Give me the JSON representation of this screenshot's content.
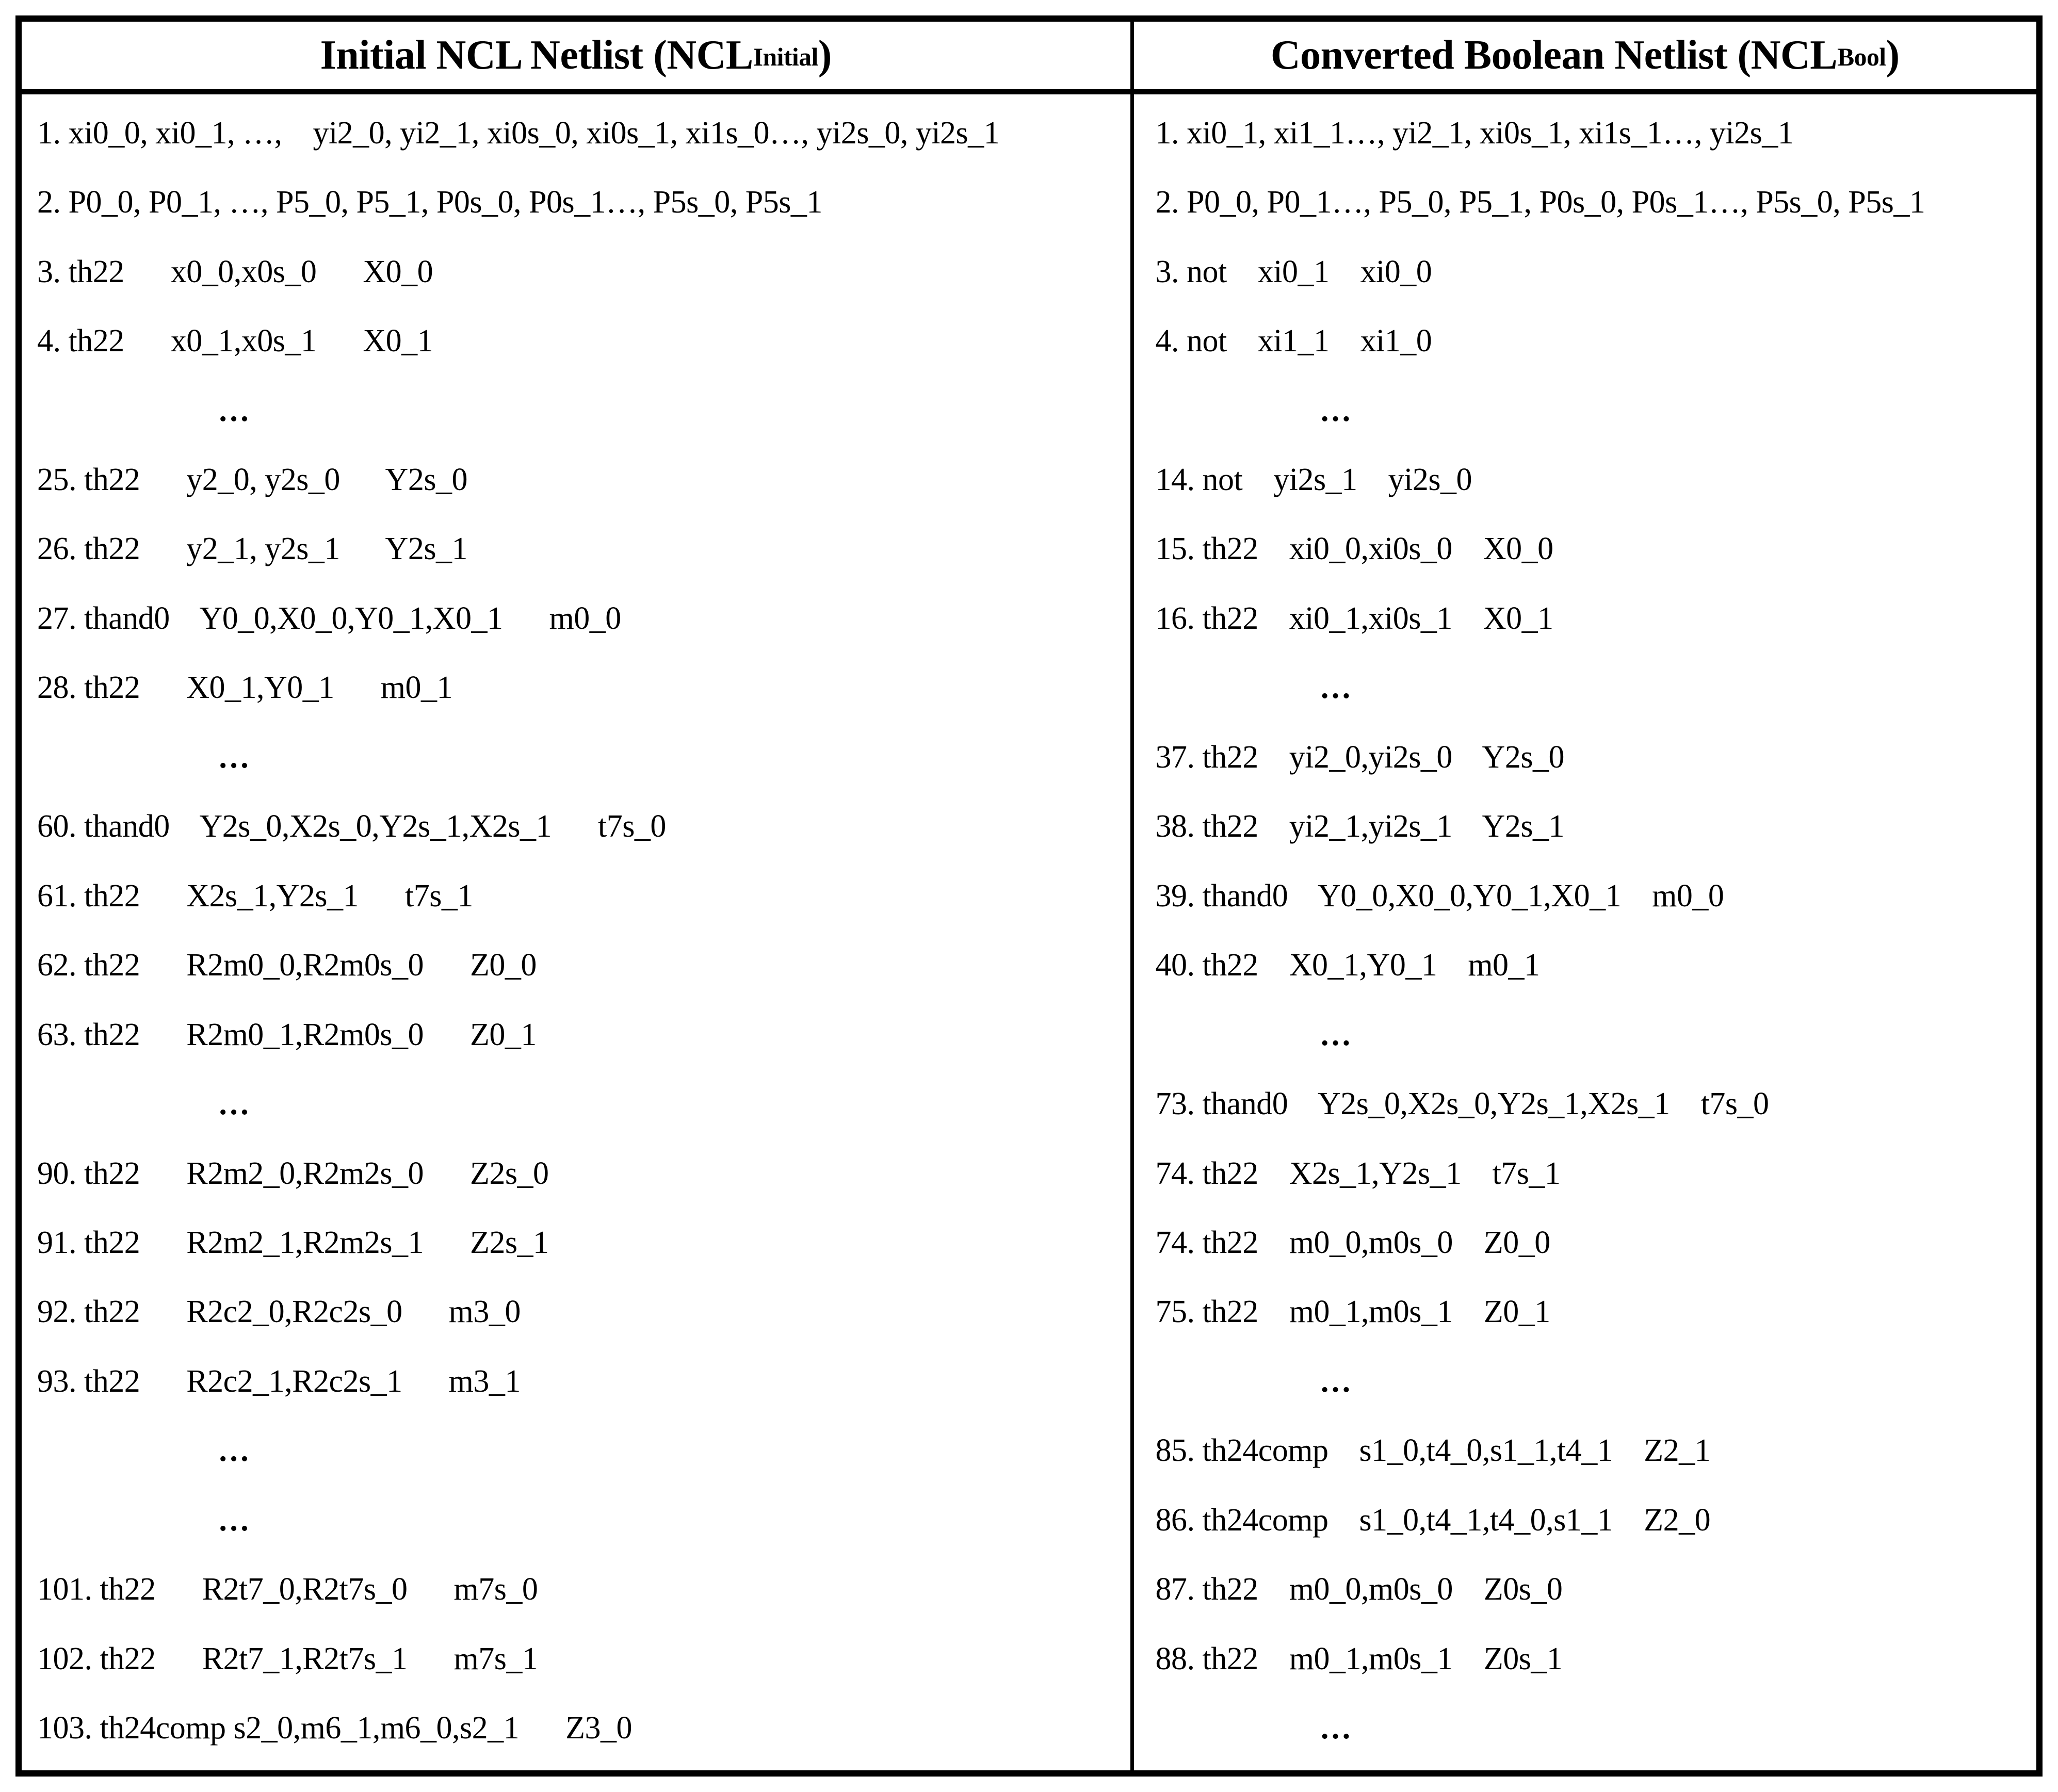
{
  "page": {
    "background_color": "#ffffff",
    "text_color": "#000000"
  },
  "table": {
    "columns": [
      {
        "id": "initial-ncl-netlist",
        "header": {
          "title_pre": "Initial NCL Netlist (NCL",
          "title_sub": "Initial",
          "title_post": ")"
        },
        "rows": [
          {
            "text": "1. xi0_0, xi0_1, …,    yi2_0, yi2_1, xi0s_0, xi0s_1, xi1s_0…, yi2s_0, yi2s_1"
          },
          {
            "text": "2. P0_0, P0_1, …, P5_0, P5_1, P0s_0, P0s_1…, P5s_0, P5s_1"
          },
          {
            "text": "3. th22      x0_0,x0s_0      X0_0"
          },
          {
            "text": "4. th22      x0_1,x0s_1      X0_1"
          },
          {
            "text": "…"
          },
          {
            "text": "25. th22      y2_0, y2s_0      Y2s_0"
          },
          {
            "text": "26. th22      y2_1, y2s_1      Y2s_1"
          },
          {
            "text": "27. thand0    Y0_0,X0_0,Y0_1,X0_1      m0_0"
          },
          {
            "text": "28. th22      X0_1,Y0_1      m0_1"
          },
          {
            "text": "…"
          },
          {
            "text": "60. thand0    Y2s_0,X2s_0,Y2s_1,X2s_1      t7s_0"
          },
          {
            "text": "61. th22      X2s_1,Y2s_1      t7s_1"
          },
          {
            "text": "62. th22      R2m0_0,R2m0s_0      Z0_0"
          },
          {
            "text": "63. th22      R2m0_1,R2m0s_0      Z0_1"
          },
          {
            "text": "…"
          },
          {
            "text": "90. th22      R2m2_0,R2m2s_0      Z2s_0"
          },
          {
            "text": "91. th22      R2m2_1,R2m2s_1      Z2s_1"
          },
          {
            "text": "92. th22      R2c2_0,R2c2s_0      m3_0"
          },
          {
            "text": "93. th22      R2c2_1,R2c2s_1      m3_1"
          },
          {
            "text": "…"
          },
          {
            "text": "…"
          },
          {
            "text": "101. th22      R2t7_0,R2t7s_0      m7s_0"
          },
          {
            "text": "102. th22      R2t7_1,R2t7s_1      m7s_1"
          },
          {
            "text": "103. th24comp s2_0,m6_1,m6_0,s2_1      Z3_0"
          }
        ]
      },
      {
        "id": "converted-boolean-netlist",
        "header": {
          "title_pre": "Converted Boolean Netlist (NCL",
          "title_sub": "Bool",
          "title_post": ")"
        },
        "rows": [
          {
            "text": "1. xi0_1, xi1_1…, yi2_1, xi0s_1, xi1s_1…, yi2s_1"
          },
          {
            "text": "2. P0_0, P0_1…, P5_0, P5_1, P0s_0, P0s_1…, P5s_0, P5s_1"
          },
          {
            "text": "3. not    xi0_1    xi0_0"
          },
          {
            "text": "4. not    xi1_1    xi1_0"
          },
          {
            "text": "…"
          },
          {
            "text": "14. not    yi2s_1    yi2s_0"
          },
          {
            "text": "15. th22    xi0_0,xi0s_0    X0_0"
          },
          {
            "text": "16. th22    xi0_1,xi0s_1    X0_1"
          },
          {
            "text": "…"
          },
          {
            "text": "37. th22    yi2_0,yi2s_0    Y2s_0"
          },
          {
            "text": "38. th22    yi2_1,yi2s_1    Y2s_1"
          },
          {
            "text": "39. thand0    Y0_0,X0_0,Y0_1,X0_1    m0_0"
          },
          {
            "text": "40. th22    X0_1,Y0_1    m0_1"
          },
          {
            "text": "…"
          },
          {
            "text": "73. thand0    Y2s_0,X2s_0,Y2s_1,X2s_1    t7s_0"
          },
          {
            "text": "74. th22    X2s_1,Y2s_1    t7s_1"
          },
          {
            "text": "74. th22    m0_0,m0s_0    Z0_0"
          },
          {
            "text": "75. th22    m0_1,m0s_1    Z0_1"
          },
          {
            "text": "…"
          },
          {
            "text": "85. th24comp    s1_0,t4_0,s1_1,t4_1    Z2_1"
          },
          {
            "text": "86. th24comp    s1_0,t4_1,t4_0,s1_1    Z2_0"
          },
          {
            "text": "87. th22    m0_0,m0s_0    Z0s_0"
          },
          {
            "text": "88. th22    m0_1,m0s_1    Z0s_1"
          },
          {
            "text": "…"
          }
        ]
      }
    ]
  }
}
